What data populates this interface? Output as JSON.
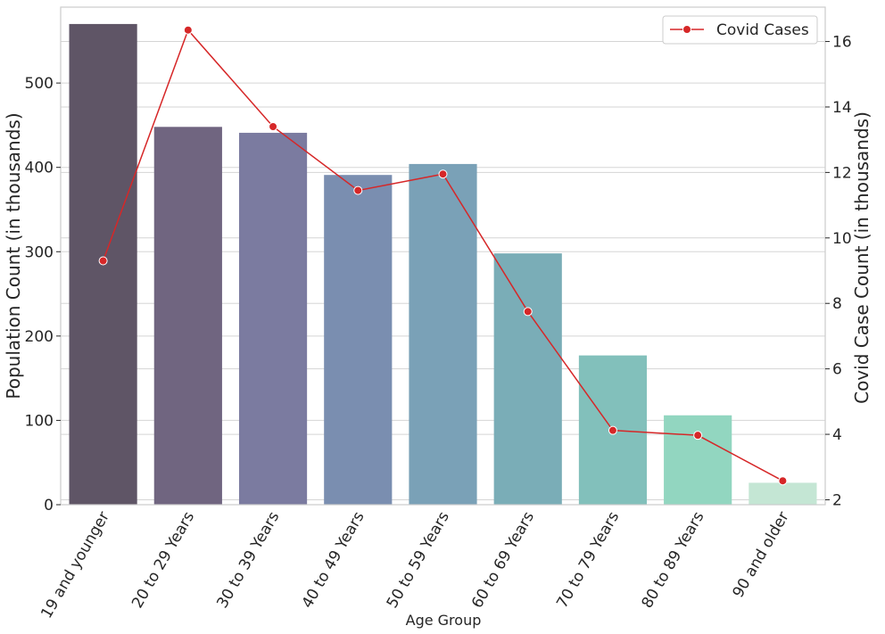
{
  "chart_data": {
    "type": "bar",
    "categories": [
      "19 and younger",
      "20 to 29 Years",
      "30 to 39 Years",
      "40 to 49 Years",
      "50 to 59 Years",
      "60 to 69 Years",
      "70 to 79 Years",
      "80 to 89 Years",
      "90 and older"
    ],
    "series": [
      {
        "type": "bar",
        "axis": "left",
        "values": [
          570,
          448,
          441,
          391,
          404,
          298,
          177,
          106,
          26
        ],
        "colors": [
          "#5f5566",
          "#706580",
          "#7b7ba0",
          "#7a8eb0",
          "#7aa1b7",
          "#7aadb7",
          "#82c0bb",
          "#92d6c0",
          "#c4e6d4"
        ]
      },
      {
        "type": "line",
        "axis": "right",
        "name": "Covid Cases",
        "values": [
          9.3,
          16.35,
          13.4,
          11.45,
          11.95,
          7.75,
          4.12,
          3.97,
          2.58
        ],
        "color": "#d62728"
      }
    ],
    "xlabel": "Age Group",
    "ylabel": "Population Count (in thousands)",
    "ylabel_right": "Covid Case Count (in thousands)",
    "ylim": [
      0,
      590
    ],
    "ylim_right": [
      1.85,
      17.05
    ],
    "yticks": [
      "0",
      "100",
      "200",
      "300",
      "400",
      "500"
    ],
    "yticks_right": [
      "2",
      "4",
      "6",
      "8",
      "10",
      "12",
      "14",
      "16"
    ],
    "grid": true,
    "legend_position": "top-right"
  }
}
